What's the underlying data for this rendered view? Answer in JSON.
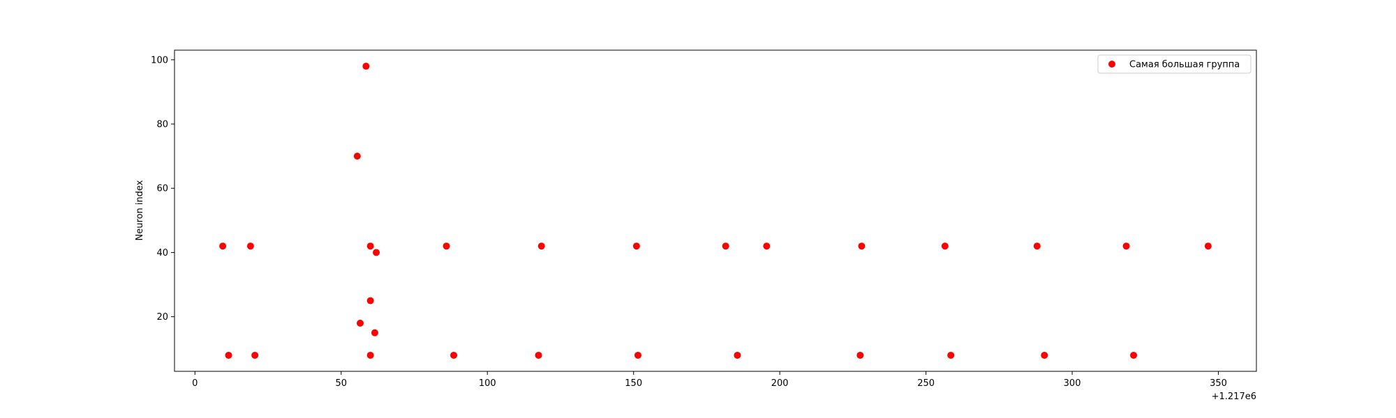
{
  "chart_data": {
    "type": "scatter",
    "title": "",
    "xlabel": "",
    "ylabel": "Neuron index",
    "x_offset_label": "+1.217e6",
    "xlim": [
      -7,
      363
    ],
    "ylim": [
      3,
      103
    ],
    "xticks": [
      0,
      50,
      100,
      150,
      200,
      250,
      300,
      350
    ],
    "yticks": [
      20,
      40,
      60,
      80,
      100
    ],
    "grid": false,
    "legend_position": "top-right",
    "series": [
      {
        "name": "Самая большая группа",
        "color": "#ff0000",
        "x": [
          9.5,
          11.5,
          19,
          20.5,
          55.5,
          56.5,
          58.5,
          60,
          60,
          60,
          61.5,
          62,
          86,
          88.5,
          117.5,
          118.5,
          151,
          151.5,
          181.5,
          185.5,
          195.5,
          227.5,
          228,
          256.5,
          258.5,
          288,
          290.5,
          318.5,
          321,
          346.5
        ],
        "y": [
          42,
          8,
          42,
          8,
          70,
          18,
          98,
          42,
          25,
          8,
          15,
          40,
          42,
          8,
          8,
          42,
          42,
          8,
          42,
          8,
          42,
          8,
          42,
          42,
          8,
          42,
          8,
          42,
          8,
          42
        ]
      }
    ]
  }
}
